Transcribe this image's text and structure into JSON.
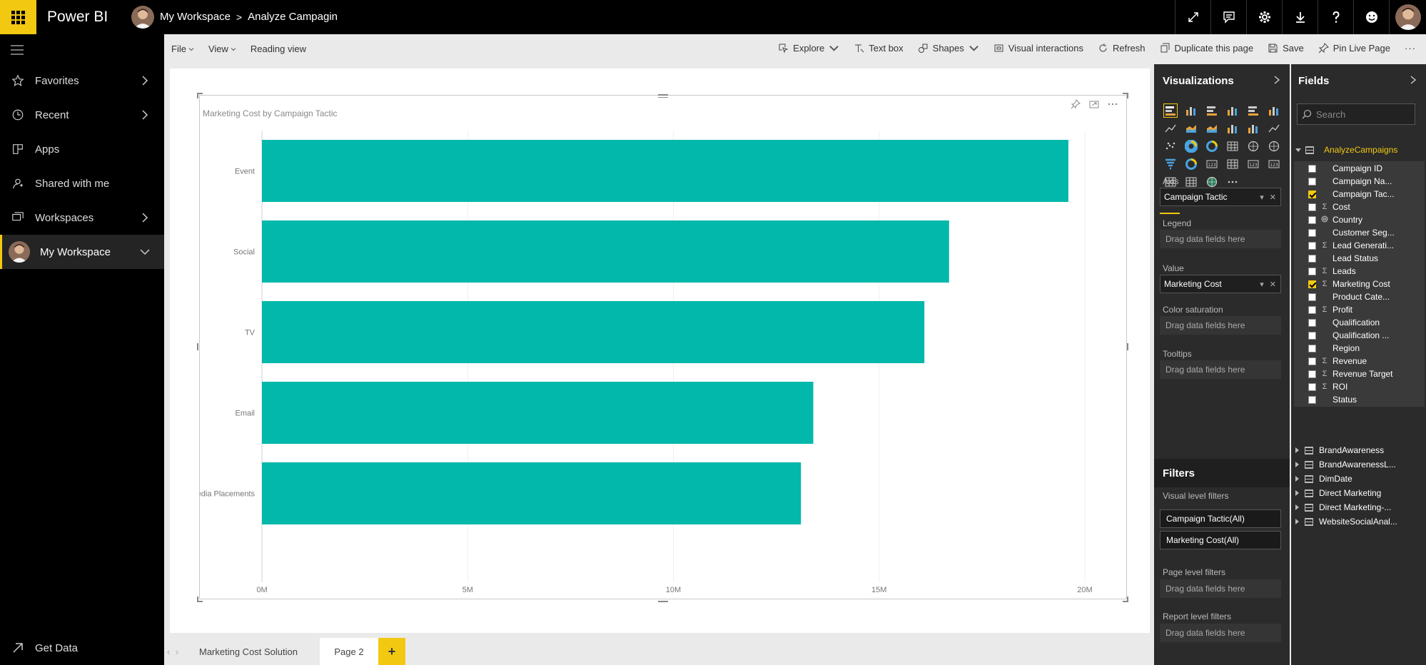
{
  "topbar": {
    "product_name": "Power BI",
    "workspace": "My Workspace",
    "separator": ">",
    "report": "Analyze Campagin",
    "icons": [
      "fullscreen-icon",
      "comment-icon",
      "gear-icon",
      "download-icon",
      "help-icon",
      "smiley-icon",
      "avatar"
    ]
  },
  "leftnav": {
    "items": [
      {
        "label": "Favorites",
        "icon": "star-icon",
        "chevron": true
      },
      {
        "label": "Recent",
        "icon": "clock-icon",
        "chevron": true
      },
      {
        "label": "Apps",
        "icon": "apps-icon",
        "chevron": false
      },
      {
        "label": "Shared with me",
        "icon": "shared-icon",
        "chevron": false
      },
      {
        "label": "Workspaces",
        "icon": "workspaces-icon",
        "chevron": true
      },
      {
        "label": "My Workspace",
        "icon": "avatar",
        "chevron": true,
        "active": true
      }
    ],
    "get_data": "Get Data"
  },
  "toolbar": {
    "file": "File",
    "view": "View",
    "reading_view": "Reading view",
    "explore": "Explore",
    "text_box": "Text box",
    "shapes": "Shapes",
    "visual_interactions": "Visual interactions",
    "refresh": "Refresh",
    "duplicate": "Duplicate this page",
    "save": "Save",
    "pin_live": "Pin Live Page",
    "more": "···"
  },
  "visual": {
    "title": "Marketing Cost by Campaign Tactic"
  },
  "chart_data": {
    "type": "bar",
    "orientation": "horizontal",
    "title": "Marketing Cost by Campaign Tactic",
    "categories": [
      "Event",
      "Social",
      "TV",
      "Email",
      "Media Placements"
    ],
    "values": [
      19.6,
      16.7,
      16.1,
      13.4,
      13.1
    ],
    "value_unit": "M",
    "xlim": [
      0,
      20
    ],
    "x_ticks": [
      "0M",
      "5M",
      "10M",
      "15M",
      "20M"
    ],
    "bar_color": "#01b8aa",
    "grid": true
  },
  "pagetabs": {
    "tabs": [
      "Marketing Cost Solution",
      "Page 2"
    ],
    "active": "Page 2",
    "add_label": "+"
  },
  "viz_pane": {
    "title": "Visualizations",
    "axis_label": "Axis",
    "axis_value": "Campaign Tactic",
    "legend_label": "Legend",
    "value_label": "Value",
    "value_value": "Marketing Cost",
    "color_saturation_label": "Color saturation",
    "tooltips_label": "Tooltips",
    "drag_placeholder": "Drag data fields here",
    "filters_title": "Filters",
    "visual_level_filters": "Visual level filters",
    "filter_1": "Campaign Tactic(All)",
    "filter_2": "Marketing Cost(All)",
    "page_level_filters": "Page level filters",
    "report_level_filters": "Report level filters"
  },
  "fields_pane": {
    "title": "Fields",
    "search_placeholder": "Search",
    "table_name": "AnalyzeCampaigns",
    "fields": [
      {
        "name": "Campaign ID",
        "type": "",
        "checked": false
      },
      {
        "name": "Campaign Na...",
        "type": "",
        "checked": false
      },
      {
        "name": "Campaign Tac...",
        "type": "",
        "checked": true
      },
      {
        "name": "Cost",
        "type": "Σ",
        "checked": false
      },
      {
        "name": "Country",
        "type": "globe",
        "checked": false
      },
      {
        "name": "Customer Seg...",
        "type": "",
        "checked": false
      },
      {
        "name": "Lead Generati...",
        "type": "Σ",
        "checked": false
      },
      {
        "name": "Lead Status",
        "type": "",
        "checked": false
      },
      {
        "name": "Leads",
        "type": "Σ",
        "checked": false
      },
      {
        "name": "Marketing Cost",
        "type": "Σ",
        "checked": true
      },
      {
        "name": "Product Cate...",
        "type": "",
        "checked": false
      },
      {
        "name": "Profit",
        "type": "Σ",
        "checked": false
      },
      {
        "name": "Qualification",
        "type": "",
        "checked": false
      },
      {
        "name": "Qualification ...",
        "type": "",
        "checked": false
      },
      {
        "name": "Region",
        "type": "",
        "checked": false
      },
      {
        "name": "Revenue",
        "type": "Σ",
        "checked": false
      },
      {
        "name": "Revenue Target",
        "type": "Σ",
        "checked": false
      },
      {
        "name": "ROI",
        "type": "Σ",
        "checked": false
      },
      {
        "name": "Status",
        "type": "",
        "checked": false
      }
    ],
    "other_tables": [
      "BrandAwareness",
      "BrandAwarenessL...",
      "DimDate",
      "Direct Marketing",
      "Direct Marketing-...",
      "WebsiteSocialAnal..."
    ]
  }
}
